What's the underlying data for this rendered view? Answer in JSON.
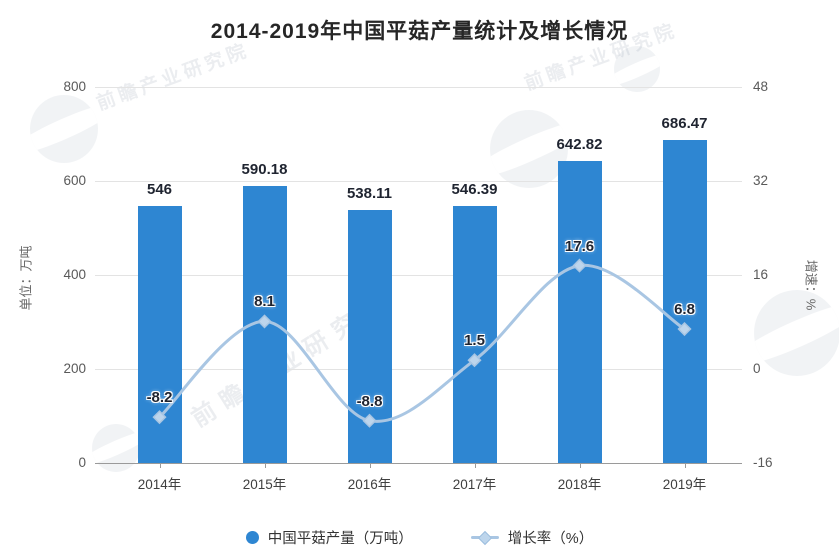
{
  "title": "2014-2019年中国平菇产量统计及增长情况",
  "watermark": {
    "text": "前瞻产业研究院"
  },
  "left_axis": {
    "name": "单位：万吨",
    "ticks": [
      800,
      600,
      400,
      200,
      0
    ],
    "min": 0,
    "max": 800
  },
  "right_axis": {
    "name": "增速：%",
    "ticks": [
      48,
      32,
      16,
      0,
      -16
    ],
    "min": -16,
    "max": 48
  },
  "legend": [
    {
      "label": "中国平菇产量（万吨）",
      "marker": "circle",
      "color": "#2e86d2"
    },
    {
      "label": "增长率（%）",
      "marker": "line-diamond",
      "color": "#a9c6e3"
    }
  ],
  "chart_data": {
    "type": "bar+line",
    "title": "2014-2019年中国平菇产量统计及增长情况",
    "categories": [
      "2014年",
      "2015年",
      "2016年",
      "2017年",
      "2018年",
      "2019年"
    ],
    "series": [
      {
        "name": "中国平菇产量（万吨）",
        "type": "bar",
        "axis": "left",
        "color": "#2e86d2",
        "values": [
          546,
          590.18,
          538.11,
          546.39,
          642.82,
          686.47
        ],
        "labels": [
          "546",
          "590.18",
          "538.11",
          "546.39",
          "642.82",
          "686.47"
        ]
      },
      {
        "name": "增长率（%）",
        "type": "line",
        "axis": "right",
        "color": "#a9c6e3",
        "marker_fill": "#bdd5ec",
        "values": [
          -8.2,
          8.1,
          -8.8,
          1.5,
          17.6,
          6.8
        ],
        "labels": [
          "-8.2",
          "8.1",
          "-8.8",
          "1.5",
          "17.6",
          "6.8"
        ]
      }
    ],
    "left_ylim": [
      0,
      800
    ],
    "right_ylim": [
      -16,
      48
    ],
    "grid": true,
    "legend_position": "bottom"
  }
}
